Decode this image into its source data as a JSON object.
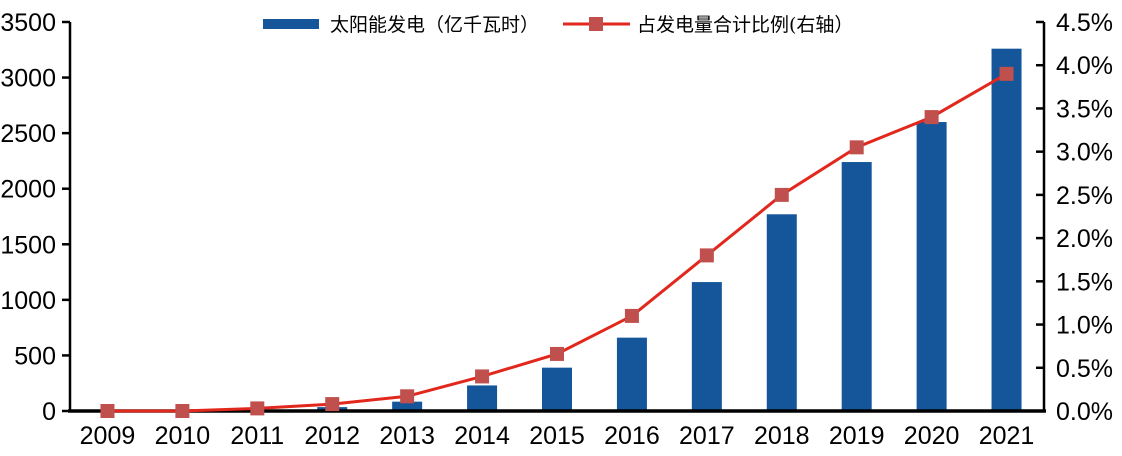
{
  "chart_data": {
    "type": "bar+line",
    "title": "",
    "categories": [
      "2009",
      "2010",
      "2011",
      "2012",
      "2013",
      "2014",
      "2015",
      "2016",
      "2017",
      "2018",
      "2019",
      "2020",
      "2021"
    ],
    "series": [
      {
        "name": "太阳能发电（亿千瓦时）",
        "type": "bar",
        "axis": "left",
        "color": "#15569B",
        "values": [
          1,
          7,
          10,
          35,
          84,
          230,
          390,
          660,
          1160,
          1770,
          2240,
          2600,
          3260
        ]
      },
      {
        "name": "占发电量合计比例(右轴）",
        "type": "line",
        "axis": "right",
        "color": "#E2271C",
        "marker_color": "#C0504D",
        "values": [
          0.0,
          0.0,
          0.03,
          0.08,
          0.17,
          0.4,
          0.66,
          1.1,
          1.8,
          2.5,
          3.05,
          3.4,
          3.9
        ]
      }
    ],
    "left_axis": {
      "min": 0,
      "max": 3500,
      "step": 500,
      "ticks": [
        "0",
        "500",
        "1000",
        "1500",
        "2000",
        "2500",
        "3000",
        "3500"
      ]
    },
    "right_axis": {
      "min": 0,
      "max": 4.5,
      "step": 0.5,
      "ticks": [
        "0.0%",
        "0.5%",
        "1.0%",
        "1.5%",
        "2.0%",
        "2.5%",
        "3.0%",
        "3.5%",
        "4.0%",
        "4.5%"
      ]
    },
    "grid": false,
    "legend_position": "top"
  },
  "colors": {
    "bar": "#15569B",
    "line": "#E2271C",
    "marker": "#C0504D",
    "axis": "#000000",
    "background": "#FFFFFF"
  }
}
